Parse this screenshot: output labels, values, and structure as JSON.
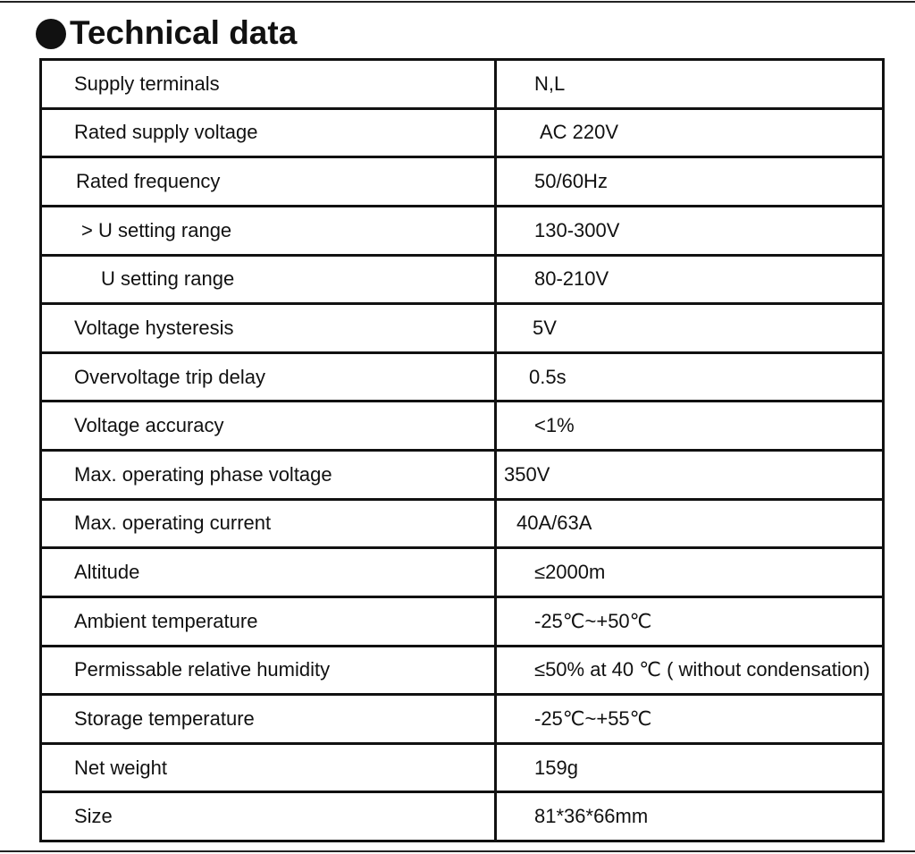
{
  "header": {
    "title": "Technical data"
  },
  "table": {
    "rows": [
      [
        "Supply terminals",
        "N,L"
      ],
      [
        "Rated supply voltage",
        "AC  220V"
      ],
      [
        "Rated frequency",
        "50/60Hz"
      ],
      [
        "> U setting range",
        "130-300V"
      ],
      [
        "U setting range",
        "80-210V"
      ],
      [
        "Voltage hysteresis",
        "5V"
      ],
      [
        "Overvoltage trip delay",
        "0.5s"
      ],
      [
        "Voltage accuracy",
        "<1%"
      ],
      [
        "Max. operating phase voltage",
        "350V"
      ],
      [
        "Max. operating current",
        "40A/63A"
      ],
      [
        "Altitude",
        "≤2000m"
      ],
      [
        "Ambient temperature",
        "-25℃~+50℃"
      ],
      [
        "Permissable relative humidity",
        "≤50% at 40 ℃ ( without condensation)"
      ],
      [
        "Storage temperature",
        "-25℃~+55℃"
      ],
      [
        "Net weight",
        "159g"
      ],
      [
        "Size",
        "81*36*66mm"
      ]
    ]
  }
}
